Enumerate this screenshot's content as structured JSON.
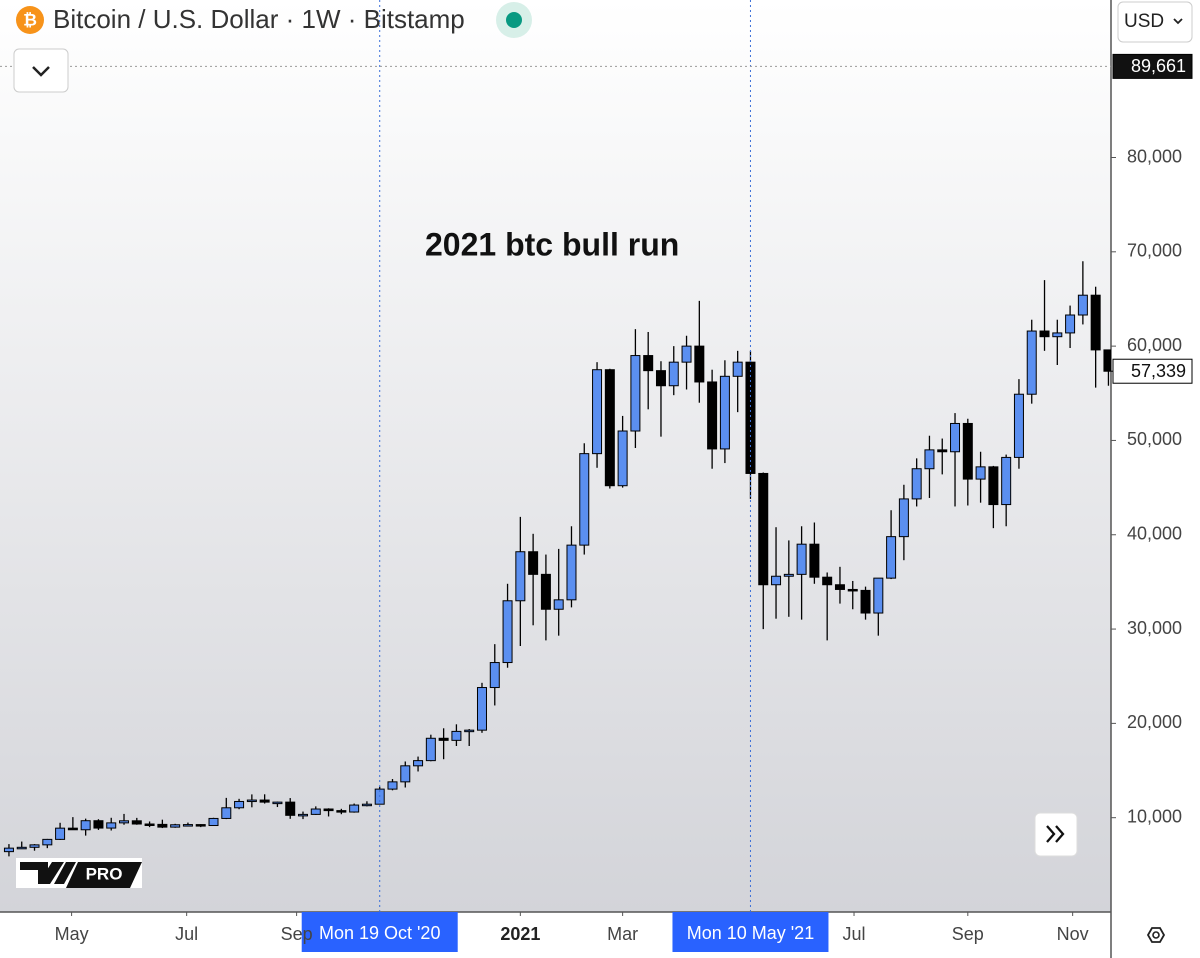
{
  "chart_data": {
    "type": "candlestick",
    "title": "Bitcoin / U.S. Dollar · 1W · Bitstamp",
    "currency": "USD",
    "annotation": "2021 btc bull run",
    "logo": "PRO",
    "up_color": "#5b8ff0",
    "down_color": "#000000",
    "open": [
      6400,
      6770,
      6860,
      7120,
      7700,
      8890,
      8720,
      9680,
      8900,
      9450,
      9670,
      9330,
      9290,
      9000,
      9250,
      9270,
      9170,
      9920,
      11050,
      11720,
      11870,
      11650,
      11650,
      10250,
      10350,
      10920,
      10750,
      10600,
      11340,
      11430,
      13030,
      13800,
      15500,
      16050,
      18420,
      18200,
      19150,
      19280,
      23800,
      26450,
      33000,
      38200,
      35800,
      32100,
      33100,
      38900,
      48600,
      57500,
      45200,
      51000,
      59000,
      57400,
      55800,
      58300,
      60000,
      56200,
      49100,
      56800,
      58300,
      46500,
      34700,
      35600,
      35800,
      39000,
      35500,
      34700,
      34200,
      34100,
      31700,
      35400,
      39800,
      43800,
      47000,
      49000,
      48800,
      51800,
      45900,
      47200,
      43200,
      48200,
      54900,
      61600,
      61000,
      61400,
      63300,
      65400,
      59600
    ],
    "high": [
      7200,
      7470,
      7200,
      7750,
      9460,
      10060,
      9900,
      9840,
      9990,
      10400,
      9980,
      9600,
      9790,
      9350,
      9480,
      9320,
      9990,
      12100,
      12000,
      12470,
      12480,
      11700,
      12080,
      10650,
      11200,
      11000,
      10940,
      11500,
      11740,
      13300,
      14100,
      15960,
      16480,
      18800,
      19480,
      19900,
      19400,
      24300,
      28400,
      34800,
      41900,
      40100,
      37900,
      38500,
      40900,
      49700,
      58300,
      57600,
      52600,
      61800,
      61500,
      58400,
      60000,
      61100,
      64800,
      57500,
      58500,
      59500,
      59500,
      46600,
      40800,
      39400,
      40900,
      41300,
      36000,
      36600,
      35100,
      34500,
      35300,
      42600,
      45300,
      48100,
      50500,
      50200,
      52900,
      52300,
      48800,
      47300,
      48500,
      56500,
      62800,
      67000,
      62800,
      64300,
      69000,
      66300,
      59600
    ],
    "low": [
      5900,
      6750,
      6500,
      6770,
      7640,
      8700,
      8100,
      8700,
      8640,
      9250,
      9250,
      9000,
      8900,
      8930,
      9100,
      9000,
      9120,
      9850,
      10900,
      11100,
      11500,
      11130,
      9880,
      9850,
      10300,
      10130,
      10370,
      10530,
      11200,
      11420,
      12900,
      13200,
      14900,
      15980,
      16200,
      17600,
      17600,
      19000,
      21900,
      25900,
      28200,
      30400,
      28800,
      29300,
      32300,
      37900,
      47100,
      44900,
      45000,
      49200,
      53300,
      50400,
      54800,
      55400,
      54000,
      47000,
      47600,
      53000,
      43800,
      30000,
      31100,
      31300,
      31000,
      34800,
      28800,
      32700,
      32100,
      31000,
      29300,
      35300,
      37300,
      43000,
      43900,
      46400,
      43000,
      43100,
      43400,
      40700,
      40900,
      47000,
      53900,
      59500,
      58000,
      59800,
      62300,
      55600,
      55800
    ],
    "close": [
      6770,
      6860,
      7120,
      7700,
      8890,
      8720,
      9680,
      8900,
      9450,
      9670,
      9330,
      9290,
      9000,
      9250,
      9270,
      9170,
      9920,
      11050,
      11720,
      11870,
      11650,
      11650,
      10250,
      10350,
      10920,
      10750,
      10600,
      11340,
      11430,
      13030,
      13800,
      15500,
      16050,
      18420,
      18200,
      19150,
      19280,
      23800,
      26450,
      33000,
      38200,
      35800,
      32100,
      33100,
      38900,
      48600,
      57500,
      45200,
      51000,
      59000,
      57400,
      55800,
      58300,
      60000,
      56200,
      49100,
      56800,
      58300,
      46500,
      34700,
      35600,
      35800,
      39000,
      35500,
      34700,
      34200,
      34100,
      31700,
      35400,
      39800,
      43800,
      47000,
      49000,
      48800,
      51800,
      45900,
      47200,
      43200,
      48200,
      54900,
      61600,
      61000,
      61400,
      63300,
      65400,
      59600,
      57339
    ],
    "ylim": [
      0,
      96700
    ],
    "yticks": [
      {
        "value": 10000,
        "label": "10,000"
      },
      {
        "value": 20000,
        "label": "20,000"
      },
      {
        "value": 30000,
        "label": "30,000"
      },
      {
        "value": 40000,
        "label": "40,000"
      },
      {
        "value": 50000,
        "label": "50,000"
      },
      {
        "value": 60000,
        "label": "60,000"
      },
      {
        "value": 70000,
        "label": "70,000"
      },
      {
        "value": 80000,
        "label": "80,000"
      }
    ],
    "xlim": [
      -0.7,
      86.2
    ],
    "xticks": [
      {
        "value": 4.9,
        "label": "May"
      },
      {
        "value": 13.9,
        "label": "Jul"
      },
      {
        "value": 22.5,
        "label": "Sep"
      },
      {
        "value": 40,
        "label": "2021"
      },
      {
        "value": 48,
        "label": "Mar"
      },
      {
        "value": 66.1,
        "label": "Jul"
      },
      {
        "value": 75,
        "label": "Sep"
      },
      {
        "value": 83.2,
        "label": "Nov"
      }
    ],
    "markers": [
      {
        "x": 29,
        "label": "Mon 19 Oct '20"
      },
      {
        "x": 58,
        "label": "Mon 10 May '21"
      }
    ],
    "price_labels": [
      {
        "value": 89661,
        "label": "89,661",
        "style": "crosshair"
      },
      {
        "value": 57339,
        "label": "57,339",
        "style": "last"
      }
    ]
  }
}
